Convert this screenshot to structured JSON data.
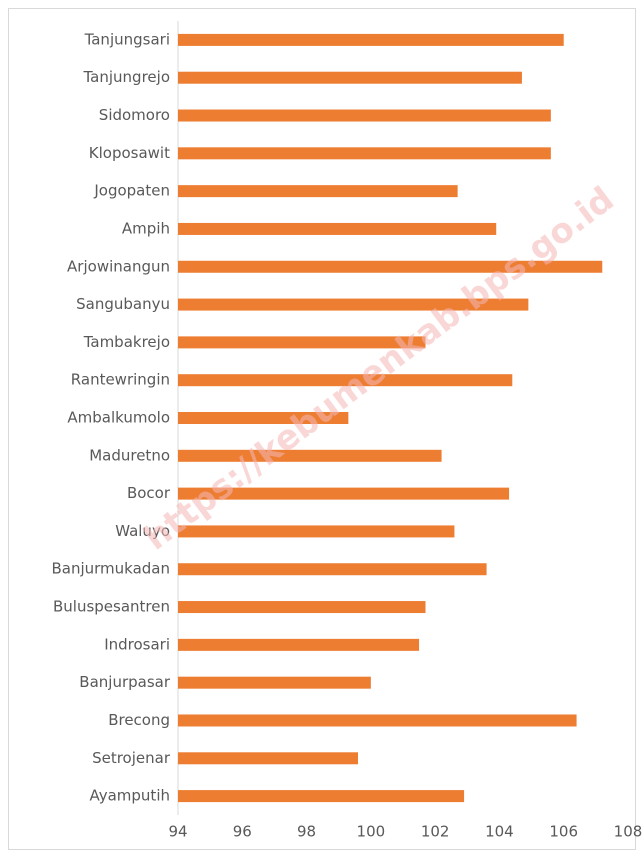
{
  "chart_data": {
    "type": "bar",
    "orientation": "horizontal",
    "categories": [
      "Tanjungsari",
      "Tanjungrejo",
      "Sidomoro",
      "Kloposawit",
      "Jogopaten",
      "Ampih",
      "Arjowinangun",
      "Sangubanyu",
      "Tambakrejo",
      "Rantewringin",
      "Ambalkumolo",
      "Maduretno",
      "Bocor",
      "Waluyo",
      "Banjurmukadan",
      "Buluspesantren",
      "Indrosari",
      "Banjurpasar",
      "Brecong",
      "Setrojenar",
      "Ayamputih"
    ],
    "values": [
      106.0,
      104.7,
      105.6,
      105.6,
      102.7,
      103.9,
      107.2,
      104.9,
      101.7,
      104.4,
      99.3,
      102.2,
      104.3,
      102.6,
      103.6,
      101.7,
      101.5,
      100.0,
      106.4,
      99.6,
      102.9
    ],
    "color": "#ed7d31",
    "xlim": [
      94,
      108
    ],
    "xticks": [
      94,
      96,
      98,
      100,
      102,
      104,
      106,
      108
    ],
    "grid": false,
    "watermark": "https://kebumenkab.bps.go.id"
  }
}
